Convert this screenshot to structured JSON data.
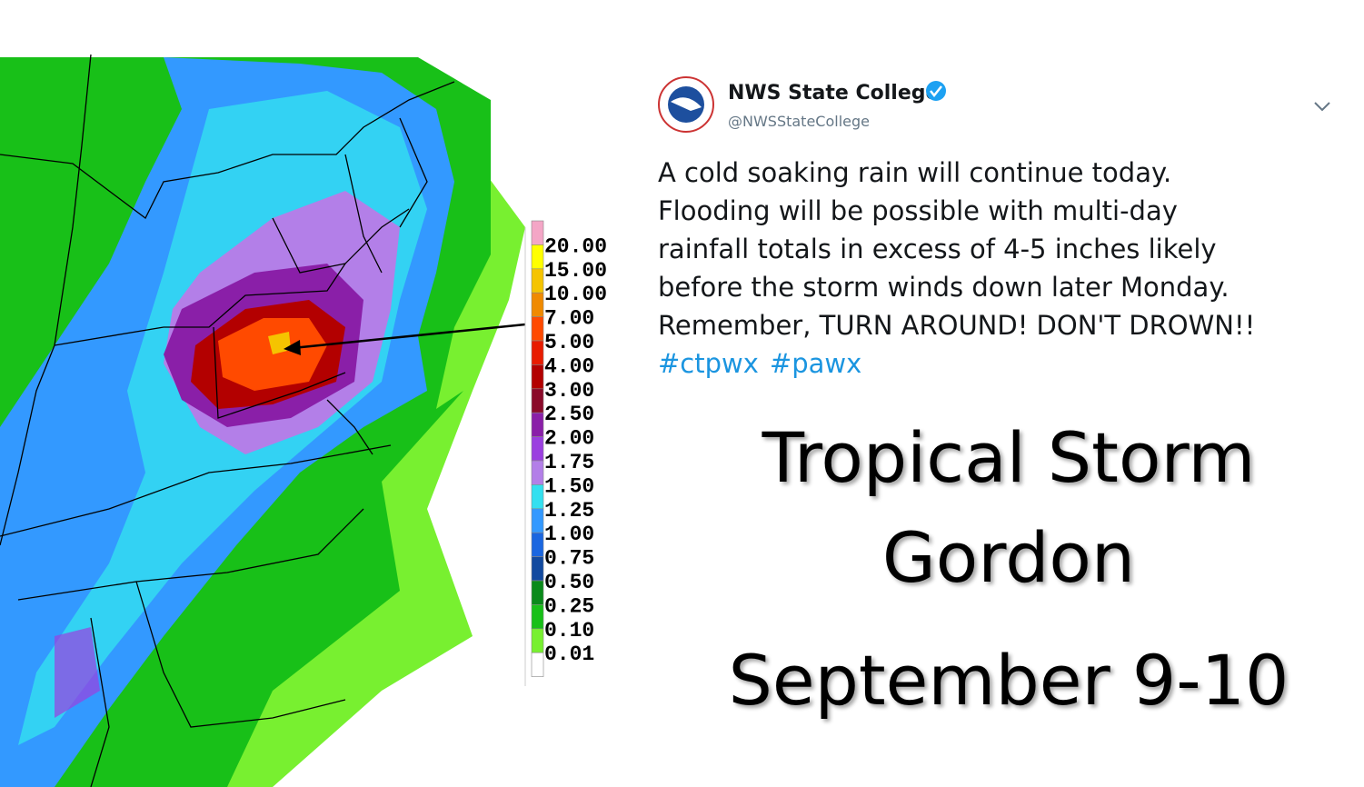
{
  "tweet": {
    "name": "NWS State College",
    "handle": "@NWSStateCollege",
    "lines": [
      "A cold soaking rain will continue today.",
      "Flooding will be possible with multi-day",
      "rainfall totals in excess of 4-5 inches likely",
      "before the storm winds down later Monday.",
      "Remember, TURN AROUND! DON'T DROWN!!"
    ],
    "hashtags": [
      "#ctpwx",
      "#pawx"
    ]
  },
  "legend": {
    "labels": [
      "20.00",
      "15.00",
      "10.00",
      "7.00",
      "5.00",
      "4.00",
      "3.00",
      "2.50",
      "2.00",
      "1.75",
      "1.50",
      "1.25",
      "1.00",
      "0.75",
      "0.50",
      "0.25",
      "0.10",
      "0.01"
    ],
    "colors": [
      "#f4a6c6",
      "#ffff00",
      "#f5c400",
      "#f08a00",
      "#ff4a00",
      "#e81c00",
      "#b30000",
      "#8b0a2a",
      "#8a1fa8",
      "#9b3fe0",
      "#b37fe8",
      "#33e0f0",
      "#3399ff",
      "#1a66e0",
      "#124aa0",
      "#0a8a1a",
      "#18c018",
      "#78f030",
      "#ffffff"
    ]
  },
  "title": {
    "lines": [
      "Tropical Storm",
      "Gordon",
      "September 9-10"
    ]
  }
}
